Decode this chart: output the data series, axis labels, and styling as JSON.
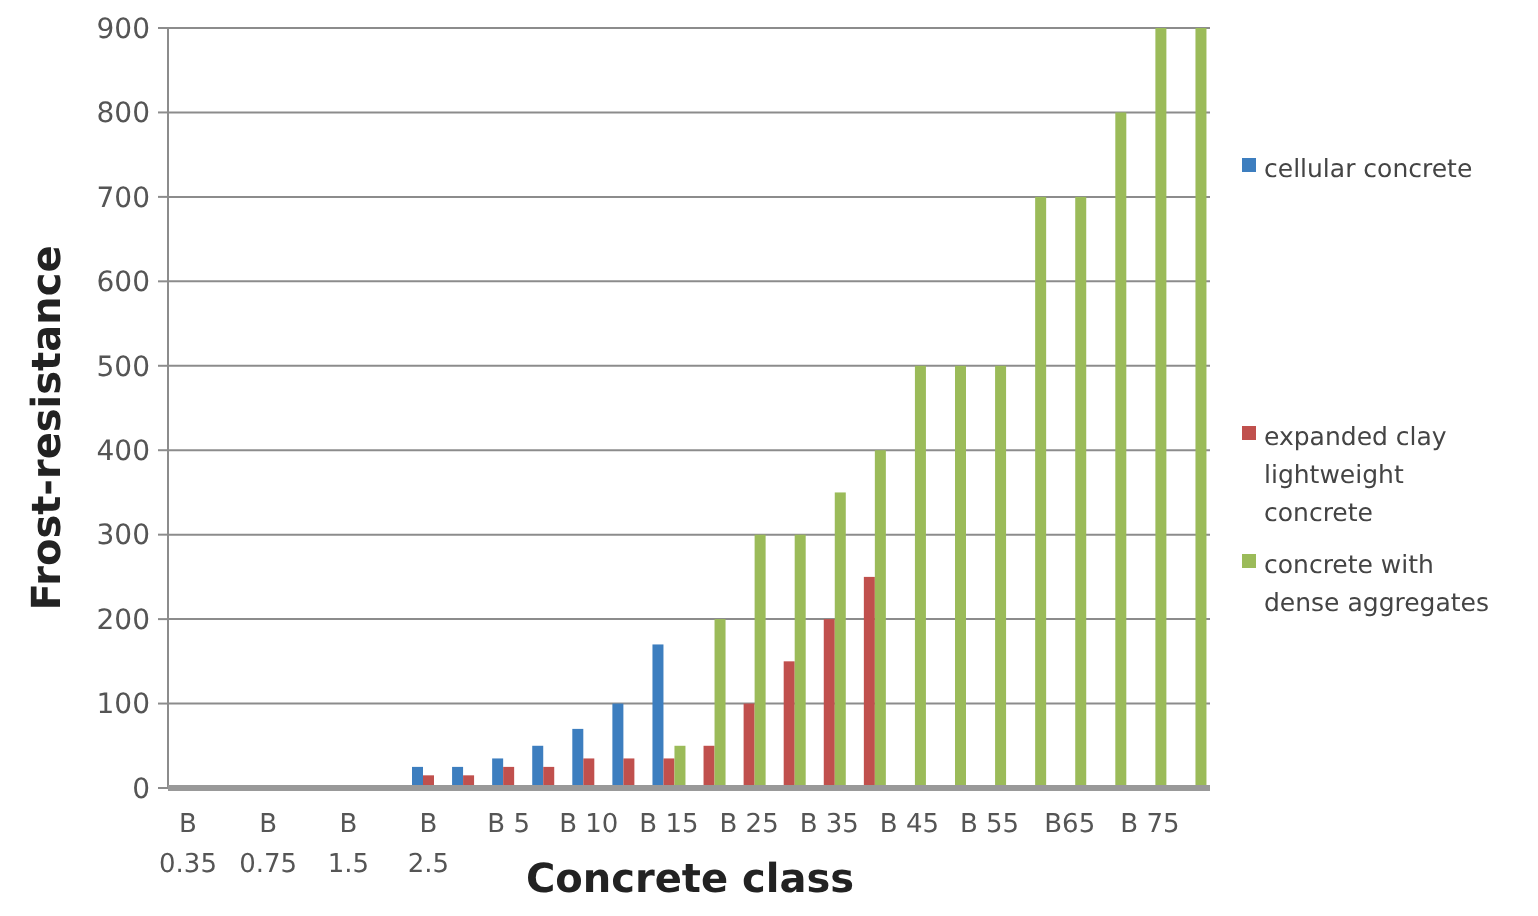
{
  "chart_data": {
    "type": "bar",
    "xlabel": "Concrete class",
    "ylabel": "Frost-resistance",
    "categories": [
      "B 0.35",
      null,
      "B 0.75",
      null,
      "B 1.5",
      null,
      "B 2.5",
      null,
      "B 5",
      null,
      "B 10",
      null,
      "B 15",
      null,
      "B 25",
      null,
      "B 35",
      null,
      "B 45",
      null,
      "B 55",
      null,
      "B65",
      null,
      "B 75",
      null
    ],
    "series": [
      {
        "name": "cellular concrete",
        "color": "#3d7ebf",
        "values": [
          2,
          2,
          2,
          2,
          2,
          2,
          25,
          25,
          35,
          50,
          70,
          100,
          170,
          null,
          null,
          null,
          null,
          null,
          null,
          null,
          null,
          null,
          null,
          null,
          null,
          null
        ]
      },
      {
        "name": "expanded clay lightweight concrete",
        "color": "#c0504d",
        "values": [
          null,
          null,
          null,
          null,
          null,
          null,
          15,
          15,
          25,
          25,
          35,
          35,
          35,
          50,
          100,
          150,
          200,
          250,
          null,
          null,
          null,
          null,
          null,
          null,
          null,
          null
        ]
      },
      {
        "name": "concrete with dense aggregates",
        "color": "#9bbb59",
        "values": [
          null,
          null,
          null,
          null,
          null,
          null,
          null,
          null,
          null,
          null,
          null,
          null,
          50,
          200,
          300,
          300,
          350,
          400,
          500,
          500,
          500,
          700,
          700,
          800,
          900,
          900
        ]
      }
    ],
    "ylim": [
      0,
      900
    ],
    "yticks": [
      0,
      100,
      200,
      300,
      400,
      500,
      600,
      700,
      800,
      900
    ],
    "grid": "y",
    "legend": "right"
  }
}
